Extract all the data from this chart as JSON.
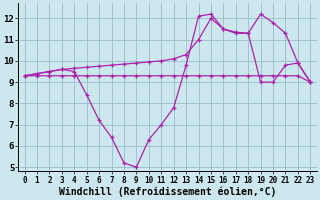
{
  "background_color": "#cce8ee",
  "grid_color": "#99bbcc",
  "line_color": "#aa22aa",
  "xlim": [
    -0.5,
    23.5
  ],
  "ylim": [
    4.8,
    12.7
  ],
  "yticks": [
    5,
    6,
    7,
    8,
    9,
    10,
    11,
    12
  ],
  "xticks": [
    0,
    1,
    2,
    3,
    4,
    5,
    6,
    7,
    8,
    9,
    10,
    11,
    12,
    13,
    14,
    15,
    16,
    17,
    18,
    19,
    20,
    21,
    22,
    23
  ],
  "xlabel": "Windchill (Refroidissement éolien,°C)",
  "line1_x": [
    0,
    1,
    2,
    3,
    4,
    5,
    6,
    7,
    8,
    9,
    10,
    11,
    12,
    13,
    14,
    15,
    16,
    17,
    18,
    19,
    20,
    21,
    22,
    23
  ],
  "line1_y": [
    9.3,
    9.4,
    9.5,
    9.6,
    9.5,
    8.4,
    7.2,
    6.4,
    5.2,
    5.0,
    6.3,
    7.0,
    7.8,
    9.8,
    12.1,
    12.2,
    11.5,
    11.3,
    11.3,
    9.0,
    9.0,
    9.8,
    9.9,
    9.0
  ],
  "line2_x": [
    0,
    1,
    2,
    3,
    4,
    5,
    6,
    7,
    8,
    9,
    10,
    11,
    12,
    13,
    14,
    15,
    16,
    17,
    18,
    19,
    20,
    21,
    22,
    23
  ],
  "line2_y": [
    9.3,
    9.3,
    9.3,
    9.3,
    9.3,
    9.3,
    9.3,
    9.3,
    9.3,
    9.3,
    9.3,
    9.3,
    9.3,
    9.3,
    9.3,
    9.3,
    9.3,
    9.3,
    9.3,
    9.3,
    9.3,
    9.3,
    9.3,
    9.0
  ],
  "line3_x": [
    0,
    1,
    2,
    3,
    4,
    5,
    6,
    7,
    8,
    9,
    10,
    11,
    12,
    13,
    14,
    15,
    16,
    17,
    18,
    19,
    20,
    21,
    22,
    23
  ],
  "line3_y": [
    9.3,
    9.4,
    9.5,
    9.6,
    9.65,
    9.7,
    9.75,
    9.8,
    9.85,
    9.9,
    9.95,
    10.0,
    10.1,
    10.3,
    11.0,
    12.0,
    11.5,
    11.35,
    11.3,
    12.2,
    11.8,
    11.3,
    9.9,
    9.0
  ]
}
